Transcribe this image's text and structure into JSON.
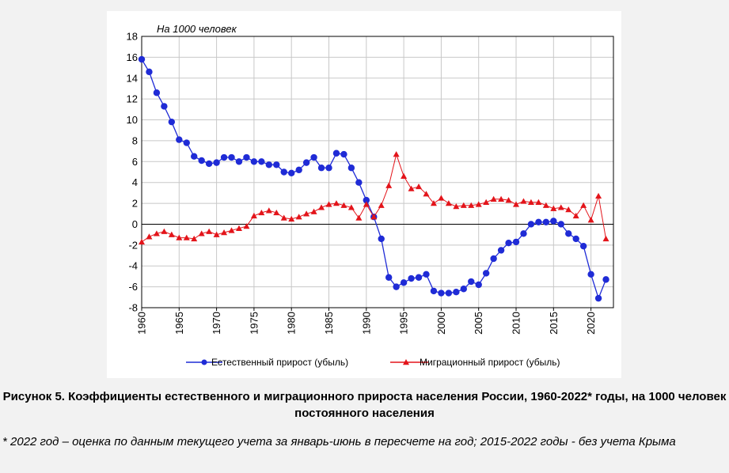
{
  "chart_data": {
    "type": "line",
    "unit_label": "На 1000 человек",
    "ylim": [
      -8,
      18
    ],
    "y_ticks": [
      18,
      16,
      14,
      12,
      10,
      8,
      6,
      4,
      2,
      0,
      -2,
      -4,
      -6,
      -8
    ],
    "xlim": [
      1960,
      2023
    ],
    "x_ticks": [
      1960,
      1965,
      1970,
      1975,
      1980,
      1985,
      1990,
      1995,
      2000,
      2005,
      2010,
      2015,
      2020
    ],
    "grid": true,
    "legend_position": "bottom",
    "colors": {
      "natural": "#1f2bd6",
      "migration": "#e3141a"
    },
    "series": [
      {
        "name": "Естественный прирост (убыль)",
        "marker": "circle",
        "x": [
          1960,
          1961,
          1962,
          1963,
          1964,
          1965,
          1966,
          1967,
          1968,
          1969,
          1970,
          1971,
          1972,
          1973,
          1974,
          1975,
          1976,
          1977,
          1978,
          1979,
          1980,
          1981,
          1982,
          1983,
          1984,
          1985,
          1986,
          1987,
          1988,
          1989,
          1990,
          1991,
          1992,
          1993,
          1994,
          1995,
          1996,
          1997,
          1998,
          1999,
          2000,
          2001,
          2002,
          2003,
          2004,
          2005,
          2006,
          2007,
          2008,
          2009,
          2010,
          2011,
          2012,
          2013,
          2014,
          2015,
          2016,
          2017,
          2018,
          2019,
          2020,
          2021,
          2022
        ],
        "values": [
          15.8,
          14.6,
          12.6,
          11.3,
          9.8,
          8.1,
          7.8,
          6.5,
          6.1,
          5.8,
          5.9,
          6.4,
          6.4,
          6.0,
          6.4,
          6.0,
          6.0,
          5.7,
          5.7,
          5.0,
          4.9,
          5.2,
          5.9,
          6.4,
          5.4,
          5.4,
          6.8,
          6.7,
          5.4,
          4.0,
          2.3,
          0.7,
          -1.4,
          -5.1,
          -6.0,
          -5.6,
          -5.2,
          -5.1,
          -4.8,
          -6.4,
          -6.6,
          -6.6,
          -6.5,
          -6.2,
          -5.5,
          -5.8,
          -4.7,
          -3.3,
          -2.5,
          -1.8,
          -1.7,
          -0.9,
          0.0,
          0.2,
          0.2,
          0.3,
          0.0,
          -0.9,
          -1.4,
          -2.1,
          -4.8,
          -7.1,
          -5.3
        ]
      },
      {
        "name": "Миграционный  прирост (убыль)",
        "marker": "triangle",
        "x": [
          1960,
          1961,
          1962,
          1963,
          1964,
          1965,
          1966,
          1967,
          1968,
          1969,
          1970,
          1971,
          1972,
          1973,
          1974,
          1975,
          1976,
          1977,
          1978,
          1979,
          1980,
          1981,
          1982,
          1983,
          1984,
          1985,
          1986,
          1987,
          1988,
          1989,
          1990,
          1991,
          1992,
          1993,
          1994,
          1995,
          1996,
          1997,
          1998,
          1999,
          2000,
          2001,
          2002,
          2003,
          2004,
          2005,
          2006,
          2007,
          2008,
          2009,
          2010,
          2011,
          2012,
          2013,
          2014,
          2015,
          2016,
          2017,
          2018,
          2019,
          2020,
          2021,
          2022
        ],
        "values": [
          -1.7,
          -1.2,
          -0.9,
          -0.7,
          -1.0,
          -1.3,
          -1.3,
          -1.4,
          -0.9,
          -0.7,
          -1.0,
          -0.8,
          -0.6,
          -0.4,
          -0.2,
          0.8,
          1.1,
          1.3,
          1.1,
          0.6,
          0.5,
          0.7,
          1.0,
          1.2,
          1.6,
          1.9,
          2.0,
          1.8,
          1.6,
          0.6,
          1.9,
          0.7,
          1.8,
          3.7,
          6.7,
          4.6,
          3.4,
          3.6,
          2.9,
          2.0,
          2.5,
          2.0,
          1.7,
          1.8,
          1.8,
          1.9,
          2.1,
          2.4,
          2.4,
          2.3,
          1.9,
          2.2,
          2.1,
          2.1,
          1.8,
          1.5,
          1.6,
          1.4,
          0.8,
          1.8,
          0.4,
          2.7,
          -1.4
        ]
      }
    ]
  },
  "caption": "Рисунок 5. Коэффициенты естественного и миграционного прироста населения России, 1960-2022* годы, на 1000 человек постоянного населения",
  "footnote": "* 2022 год – оценка по данным текущего учета за январь-июнь в пересчете на год; 2015-2022 годы - без учета Крыма"
}
